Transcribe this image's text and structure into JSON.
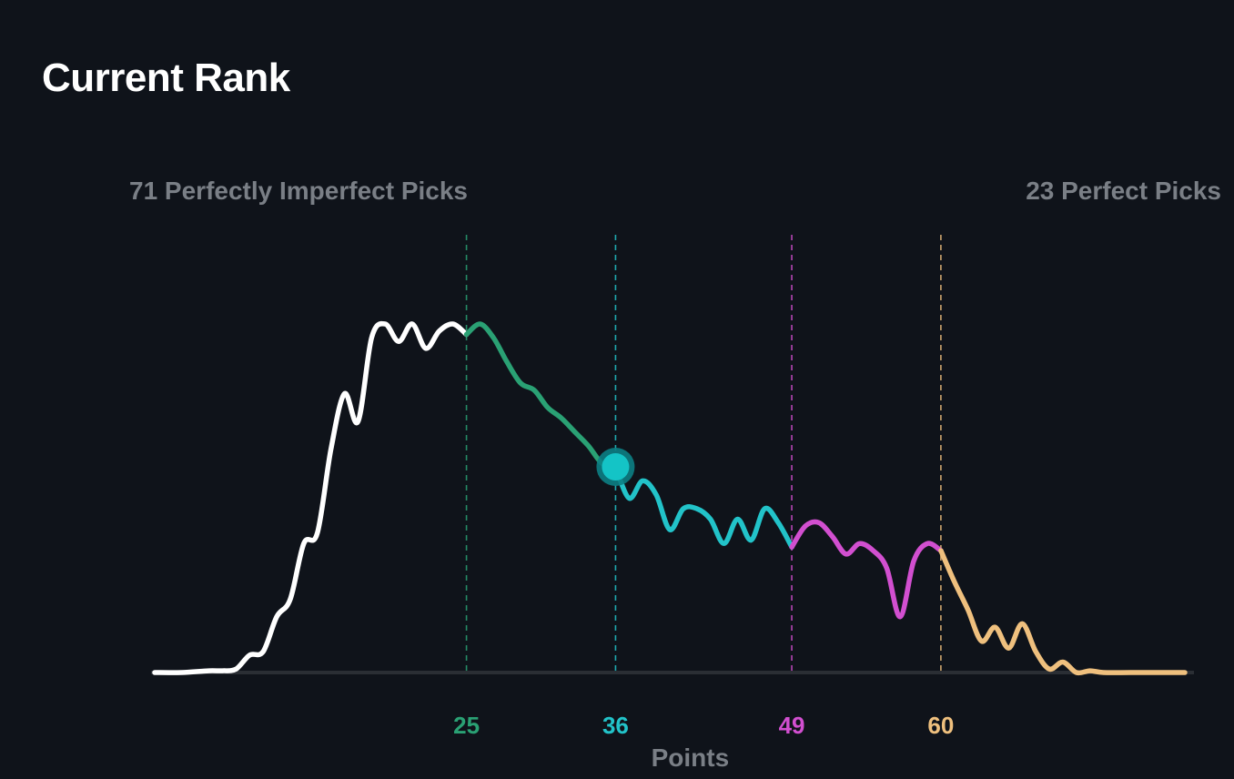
{
  "title": "Current Rank",
  "left_label": "71 Perfectly Imperfect Picks",
  "right_label": "23 Perfect Picks",
  "colors": {
    "background": "#0f131a",
    "baseline": "#2a2e34",
    "low": "#ffffff",
    "tier_25": "#2aa174",
    "tier_36": "#22c3c9",
    "tier_49": "#d24fd0",
    "tier_60": "#efc07e",
    "marker": "#14c4c6"
  },
  "chart_data": {
    "type": "line",
    "xlabel": "Points",
    "ylabel": "",
    "xlim": [
      2,
      78
    ],
    "ylim": [
      0,
      100
    ],
    "grid": false,
    "legend": "none",
    "thresholds": [
      {
        "value": 25,
        "label": "25",
        "color": "#2aa174"
      },
      {
        "value": 36,
        "label": "36",
        "color": "#22c3c9"
      },
      {
        "value": 49,
        "label": "49",
        "color": "#d24fd0"
      },
      {
        "value": 60,
        "label": "60",
        "color": "#efc07e"
      }
    ],
    "current_position": {
      "x": 36,
      "y": 59
    },
    "series": [
      {
        "color": "#ffffff",
        "x": [
          2,
          4,
          6,
          7,
          8,
          9,
          10,
          11,
          12,
          13,
          14,
          15,
          16,
          17,
          18,
          19,
          20,
          21,
          22,
          23,
          24,
          25
        ],
        "y": [
          0,
          0,
          0.5,
          0.5,
          1,
          5,
          6,
          16,
          21,
          37,
          40,
          64,
          80,
          72,
          96,
          100,
          95,
          100,
          93,
          98,
          100,
          97
        ]
      },
      {
        "color": "#2aa174",
        "x": [
          25,
          26,
          27,
          28,
          29,
          30,
          31,
          32,
          33,
          34,
          35,
          36
        ],
        "y": [
          97,
          100,
          96,
          89,
          83,
          81,
          76,
          73,
          69,
          65,
          60,
          59
        ]
      },
      {
        "color": "#22c3c9",
        "x": [
          36,
          37,
          38,
          39,
          40,
          41,
          42,
          43,
          44,
          45,
          46,
          47,
          48,
          49
        ],
        "y": [
          59,
          50,
          55,
          51,
          41,
          47,
          47,
          44,
          37,
          44,
          38,
          47,
          43,
          36
        ]
      },
      {
        "color": "#d24fd0",
        "x": [
          49,
          50,
          51,
          52,
          53,
          54,
          55,
          56,
          57,
          58,
          59,
          60
        ],
        "y": [
          36,
          42,
          43,
          39,
          34,
          37,
          35,
          30,
          16,
          32,
          37,
          35
        ]
      },
      {
        "color": "#efc07e",
        "x": [
          60,
          61,
          62,
          63,
          64,
          65,
          66,
          67,
          68,
          69,
          70,
          71,
          72,
          74,
          76,
          78
        ],
        "y": [
          35,
          26,
          18,
          9,
          13,
          7,
          14,
          6,
          1,
          3,
          0,
          0.5,
          0,
          0,
          0,
          0
        ]
      }
    ]
  }
}
